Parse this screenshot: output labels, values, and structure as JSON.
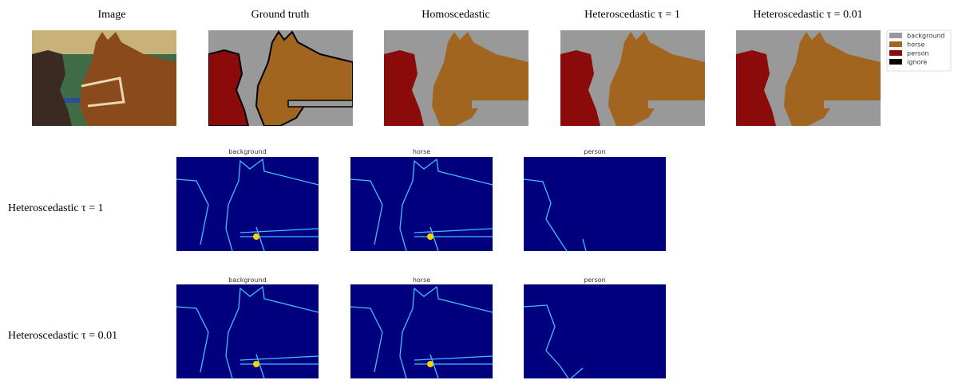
{
  "column_titles": [
    "Image",
    "Ground truth",
    "Homoscedastic",
    "Heteroscedastic τ = 1",
    "Heteroscedastic τ = 0.01"
  ],
  "legend": [
    {
      "label": "background",
      "color": "#999999"
    },
    {
      "label": "horse",
      "color": "#a2651f"
    },
    {
      "label": "person",
      "color": "#8b0a0a"
    },
    {
      "label": "ignore",
      "color": "#000000"
    }
  ],
  "rows": [
    {
      "label": "Heteroscedastic τ = 1",
      "panels": [
        "background",
        "horse",
        "person"
      ]
    },
    {
      "label": "Heteroscedastic τ = 0.01",
      "panels": [
        "background",
        "horse",
        "person"
      ]
    }
  ]
}
